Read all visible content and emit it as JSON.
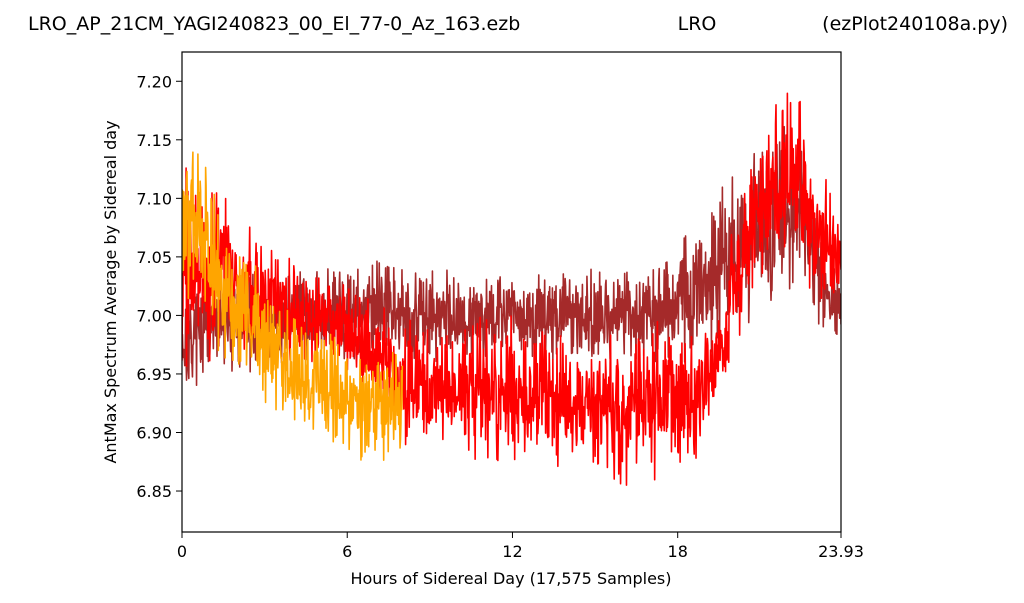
{
  "chart_data": {
    "type": "line",
    "title": {
      "left": "LRO_AP_21CM_YAGI240823_00_El_77-0_Az_163.ezb",
      "center": "LRO",
      "right": "(ezPlot240108a.py)"
    },
    "xlabel": "Hours of Sidereal Day  (17,575 Samples)",
    "ylabel": "AntMax Spectrum Average by Sidereal day",
    "xlim": [
      0,
      23.93
    ],
    "ylim": [
      6.815,
      7.225
    ],
    "xticks": [
      {
        "value": 0,
        "label": "0"
      },
      {
        "value": 6,
        "label": "6"
      },
      {
        "value": 12,
        "label": "12"
      },
      {
        "value": 18,
        "label": "18"
      },
      {
        "value": 23.93,
        "label": "23.93"
      }
    ],
    "yticks": [
      {
        "value": 6.85,
        "label": "6.85"
      },
      {
        "value": 6.9,
        "label": "6.90"
      },
      {
        "value": 6.95,
        "label": "6.95"
      },
      {
        "value": 7.0,
        "label": "7.00"
      },
      {
        "value": 7.05,
        "label": "7.05"
      },
      {
        "value": 7.1,
        "label": "7.10"
      },
      {
        "value": 7.15,
        "label": "7.15"
      },
      {
        "value": 7.2,
        "label": "7.20"
      }
    ],
    "grid": false,
    "series": [
      {
        "color": "#a52a2a",
        "x": [
          0,
          0.5,
          1,
          2,
          3,
          4,
          5,
          6,
          7,
          8,
          9,
          10,
          11,
          12,
          13,
          14,
          15,
          16,
          17,
          18,
          19,
          19.5,
          20,
          20.5,
          21,
          22,
          22.5,
          23,
          23.5,
          23.93
        ],
        "low": [
          6.93,
          6.94,
          6.94,
          6.95,
          6.95,
          6.96,
          6.96,
          6.96,
          6.96,
          6.96,
          6.96,
          6.96,
          6.96,
          6.96,
          6.96,
          6.96,
          6.96,
          6.96,
          6.96,
          6.96,
          6.96,
          6.97,
          6.98,
          6.99,
          7.0,
          7.01,
          7.01,
          6.99,
          6.98,
          6.97
        ],
        "high": [
          7.02,
          7.04,
          7.04,
          7.04,
          7.04,
          7.04,
          7.04,
          7.05,
          7.05,
          7.04,
          7.04,
          7.04,
          7.04,
          7.04,
          7.04,
          7.04,
          7.04,
          7.04,
          7.05,
          7.07,
          7.09,
          7.11,
          7.12,
          7.13,
          7.15,
          7.18,
          7.15,
          7.1,
          7.06,
          7.04
        ]
      },
      {
        "color": "#ff0000",
        "x": [
          0,
          0.5,
          1,
          2,
          3,
          4,
          5,
          6,
          7,
          8,
          9,
          10,
          11,
          12,
          13,
          14,
          15,
          16,
          17,
          18,
          19,
          19.5,
          20,
          20.5,
          21,
          22,
          22.5,
          23,
          23.5,
          23.93
        ],
        "low": [
          6.95,
          6.96,
          6.96,
          6.96,
          6.96,
          6.96,
          6.96,
          6.95,
          6.92,
          6.89,
          6.87,
          6.87,
          6.87,
          6.87,
          6.87,
          6.87,
          6.86,
          6.85,
          6.85,
          6.86,
          6.88,
          6.91,
          6.96,
          7.0,
          7.02,
          7.04,
          7.04,
          7.01,
          6.99,
          6.99
        ],
        "high": [
          7.13,
          7.13,
          7.12,
          7.09,
          7.07,
          7.05,
          7.04,
          7.03,
          7.01,
          7.0,
          7.0,
          7.0,
          7.0,
          7.0,
          7.0,
          6.99,
          6.99,
          6.99,
          7.0,
          7.0,
          6.99,
          7.02,
          7.09,
          7.13,
          7.16,
          7.2,
          7.19,
          7.15,
          7.11,
          7.1
        ]
      },
      {
        "color": "#ffa500",
        "x": [
          0,
          0.25,
          0.5,
          1,
          1.5,
          2,
          3,
          4,
          5,
          6,
          7,
          8
        ],
        "low": [
          6.99,
          7.0,
          7.0,
          6.98,
          6.96,
          6.94,
          6.92,
          6.91,
          6.89,
          6.88,
          6.87,
          6.88
        ],
        "high": [
          7.13,
          7.15,
          7.15,
          7.12,
          7.09,
          7.07,
          7.04,
          7.01,
          6.99,
          6.98,
          6.97,
          6.97
        ]
      }
    ]
  }
}
